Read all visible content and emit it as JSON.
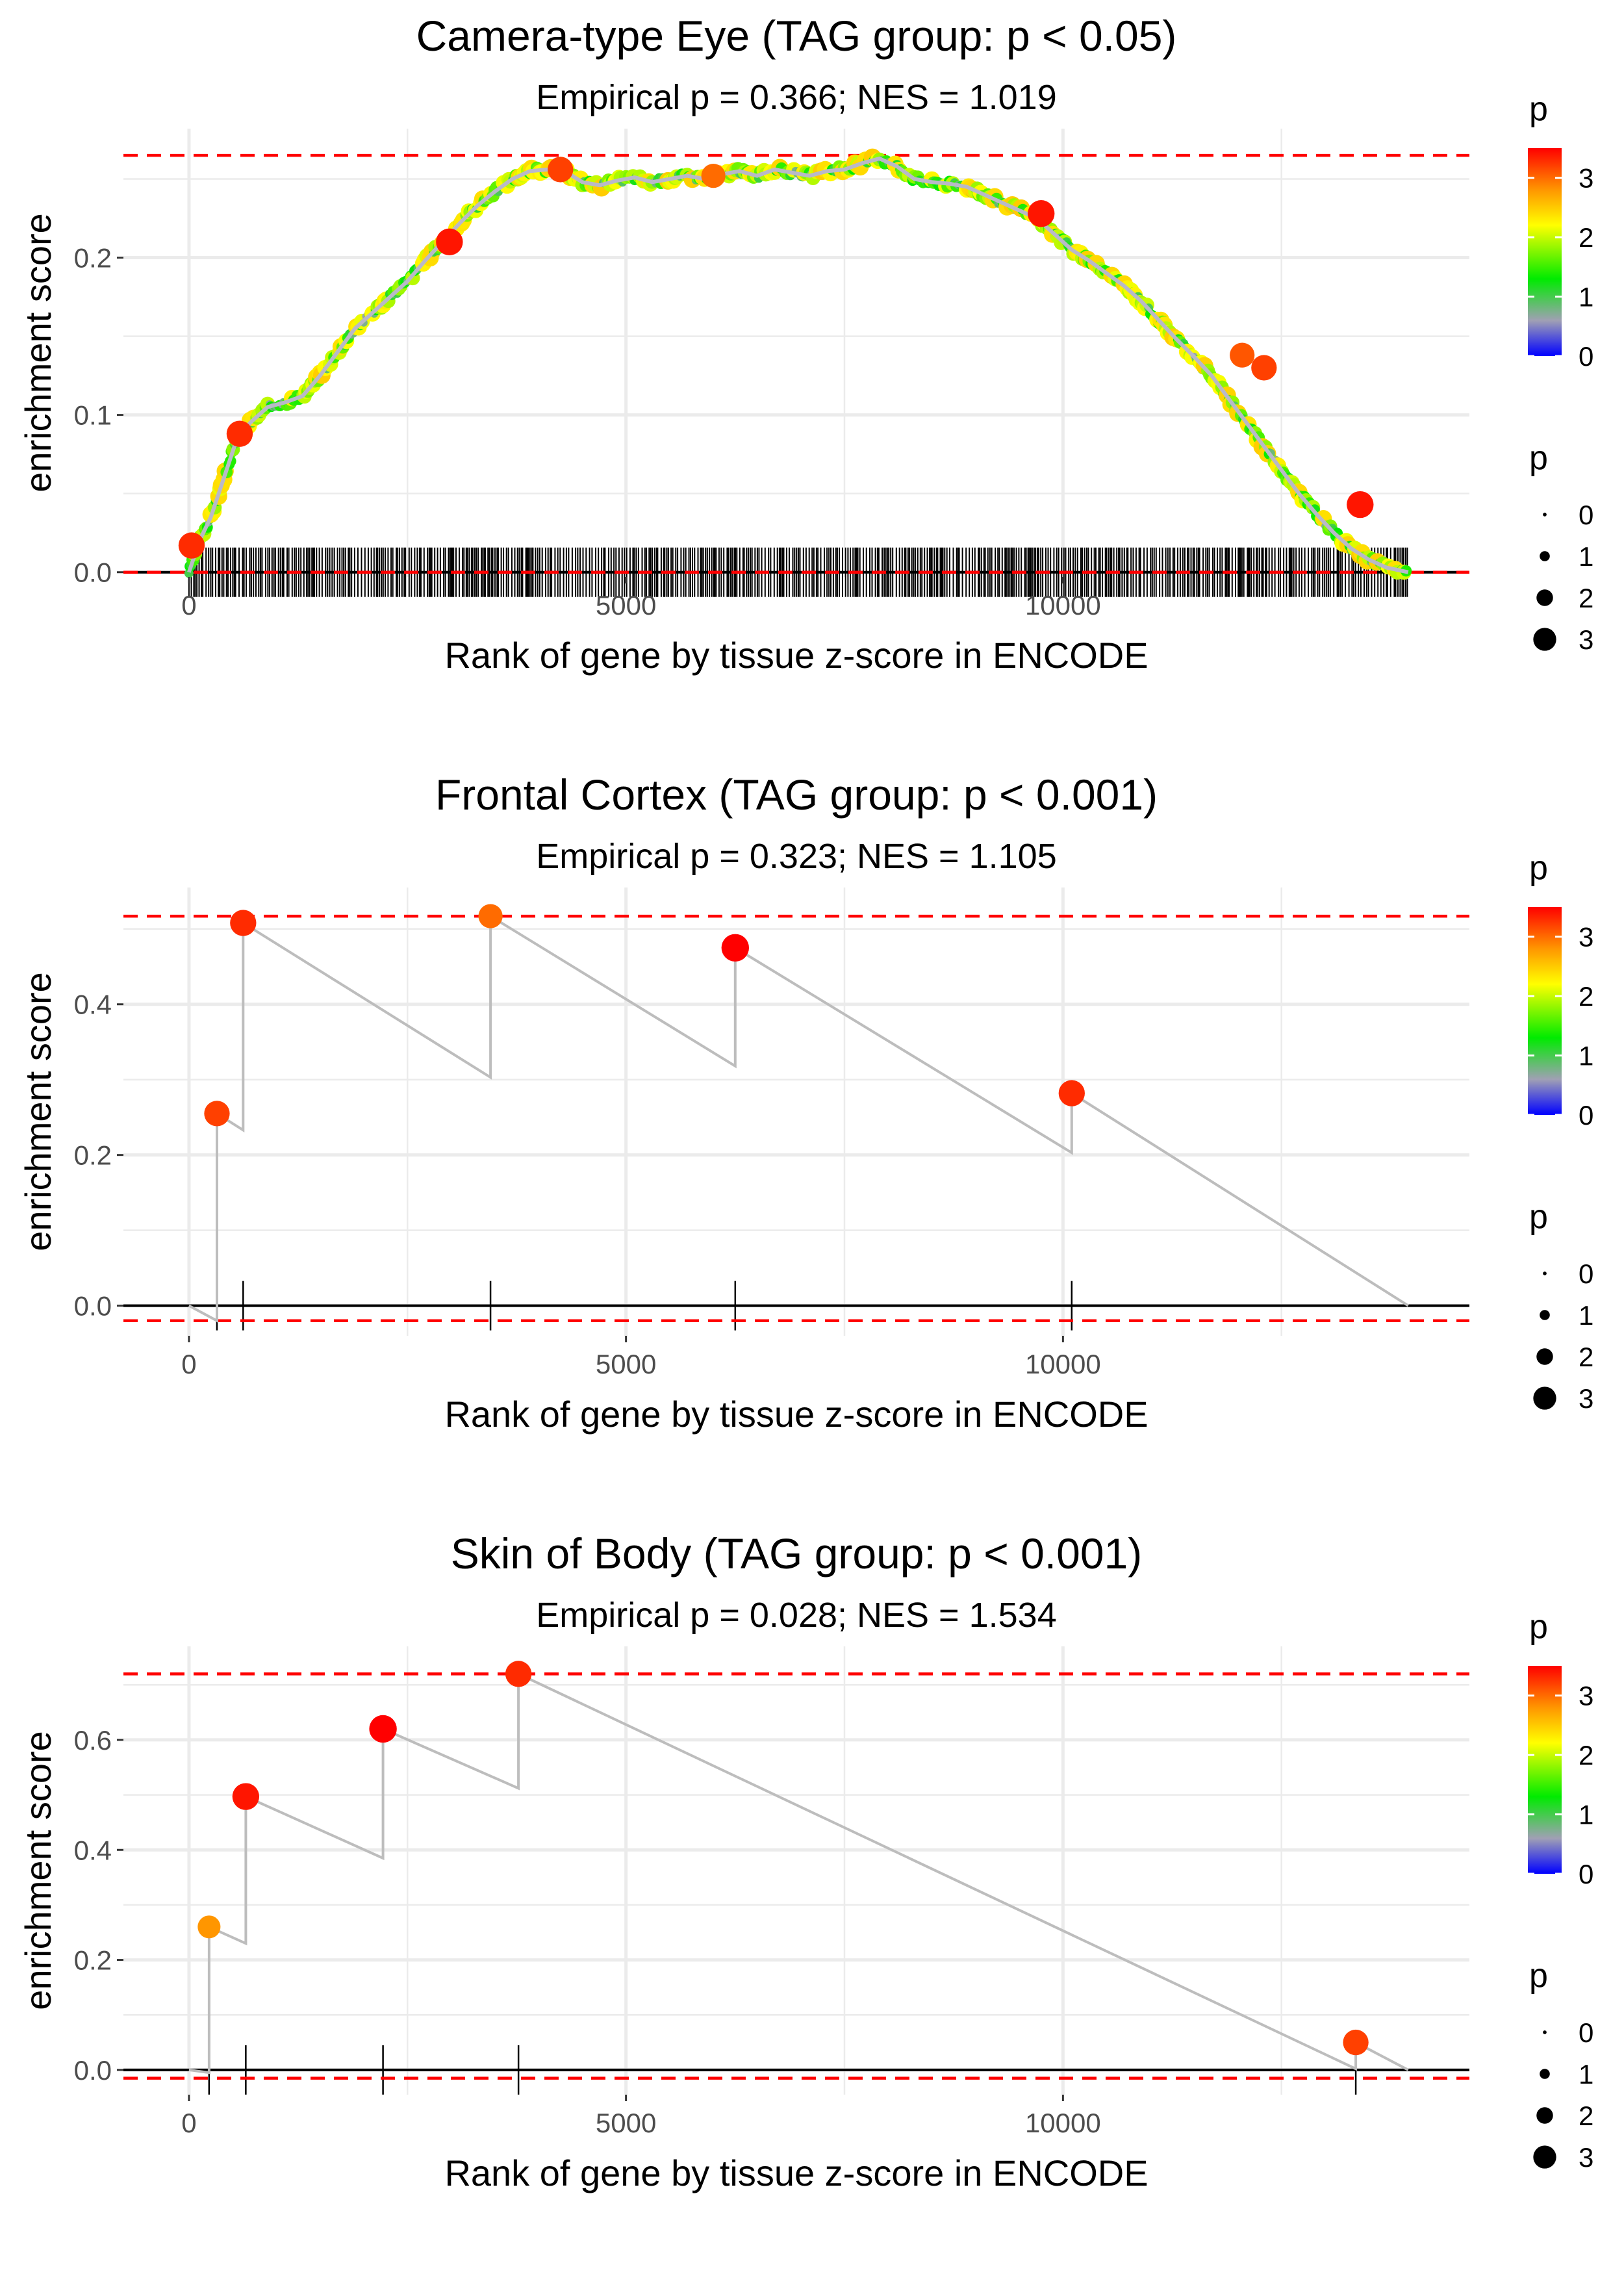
{
  "chart_data": [
    {
      "type": "line",
      "title": "Camera-type Eye (TAG group: p < 0.05)",
      "subtitle": "Empirical p = 0.366; NES = 1.019",
      "xlabel": "Rank of gene by tissue z-score in ENCODE",
      "ylabel": "enrichment score",
      "xlim": [
        -750,
        14650
      ],
      "ylim": [
        -0.003,
        0.282
      ],
      "xticks": [
        0,
        5000,
        10000
      ],
      "xtick_labels": [
        "0",
        "5000",
        "10000"
      ],
      "yticks": [
        0,
        0.1,
        0.2
      ],
      "ytick_labels": [
        "0.0",
        "0.1",
        "0.2"
      ],
      "max_es_line": 0.265,
      "min_es_line": 0.0,
      "n_genes": 14000,
      "dense_hits": true,
      "hit_range": [
        0,
        13950
      ],
      "curve_x": [
        0,
        120,
        250,
        400,
        550,
        700,
        900,
        1100,
        1300,
        1500,
        1700,
        1900,
        2100,
        2300,
        2500,
        2700,
        2900,
        3100,
        3300,
        3500,
        3700,
        3900,
        4100,
        4300,
        4500,
        4700,
        4900,
        5100,
        5300,
        5500,
        5700,
        5900,
        6100,
        6300,
        6500,
        6700,
        6900,
        7100,
        7300,
        7500,
        7700,
        7900,
        8100,
        8300,
        8500,
        8700,
        8900,
        9100,
        9300,
        9500,
        9700,
        9900,
        10100,
        10300,
        10500,
        10700,
        10900,
        11100,
        11300,
        11500,
        11700,
        11900,
        12100,
        12300,
        12500,
        12700,
        12900,
        13100,
        13300,
        13500,
        13700,
        13950
      ],
      "curve_y": [
        0.0,
        0.02,
        0.035,
        0.06,
        0.085,
        0.095,
        0.105,
        0.108,
        0.112,
        0.125,
        0.14,
        0.155,
        0.165,
        0.175,
        0.185,
        0.198,
        0.21,
        0.222,
        0.233,
        0.242,
        0.25,
        0.255,
        0.256,
        0.255,
        0.248,
        0.246,
        0.249,
        0.251,
        0.248,
        0.25,
        0.252,
        0.25,
        0.253,
        0.255,
        0.252,
        0.256,
        0.254,
        0.252,
        0.255,
        0.256,
        0.26,
        0.263,
        0.258,
        0.25,
        0.248,
        0.247,
        0.245,
        0.24,
        0.235,
        0.23,
        0.225,
        0.215,
        0.205,
        0.198,
        0.19,
        0.182,
        0.172,
        0.16,
        0.148,
        0.137,
        0.125,
        0.11,
        0.095,
        0.08,
        0.065,
        0.05,
        0.037,
        0.025,
        0.015,
        0.008,
        0.003,
        0.0
      ],
      "points": [
        {
          "x": 30,
          "y": 0.017,
          "p": 3.3
        },
        {
          "x": 580,
          "y": 0.088,
          "p": 3.3
        },
        {
          "x": 2980,
          "y": 0.21,
          "p": 3.4
        },
        {
          "x": 4250,
          "y": 0.256,
          "p": 3.2
        },
        {
          "x": 6000,
          "y": 0.252,
          "p": 3.0
        },
        {
          "x": 9750,
          "y": 0.228,
          "p": 3.4
        },
        {
          "x": 12050,
          "y": 0.138,
          "p": 3.1
        },
        {
          "x": 12300,
          "y": 0.13,
          "p": 3.2
        },
        {
          "x": 13400,
          "y": 0.043,
          "p": 3.4
        }
      ],
      "legend_color_title": "p",
      "legend_color_labels": [
        "3",
        "2",
        "1",
        "0"
      ],
      "legend_size_title": "p",
      "legend_size_labels": [
        "0",
        "1",
        "2",
        "3"
      ]
    },
    {
      "type": "line",
      "title": "Frontal Cortex (TAG group: p < 0.001)",
      "subtitle": "Empirical p = 0.323; NES = 1.105",
      "xlabel": "Rank of gene by tissue z-score in ENCODE",
      "ylabel": "enrichment score",
      "xlim": [
        -750,
        14650
      ],
      "ylim": [
        -0.04,
        0.555
      ],
      "xticks": [
        0,
        5000,
        10000
      ],
      "xtick_labels": [
        "0",
        "5000",
        "10000"
      ],
      "yticks": [
        0,
        0.2,
        0.4
      ],
      "ytick_labels": [
        "0.0",
        "0.2",
        "0.4"
      ],
      "max_es_line": 0.517,
      "min_es_line": -0.02,
      "n_genes": 14000,
      "dense_hits": false,
      "hits": [
        320,
        620,
        3450,
        6250,
        10100
      ],
      "curve_x": [
        0,
        320,
        320,
        620,
        620,
        3450,
        3450,
        6250,
        6250,
        10100,
        10100,
        13950
      ],
      "curve_y": [
        0,
        -0.02,
        0.255,
        0.233,
        0.508,
        0.303,
        0.517,
        0.318,
        0.475,
        0.203,
        0.282,
        0
      ],
      "points": [
        {
          "x": 320,
          "y": 0.255,
          "p": 3.2
        },
        {
          "x": 620,
          "y": 0.508,
          "p": 3.3
        },
        {
          "x": 3450,
          "y": 0.517,
          "p": 3.0
        },
        {
          "x": 6250,
          "y": 0.475,
          "p": 3.5
        },
        {
          "x": 10100,
          "y": 0.282,
          "p": 3.3
        }
      ],
      "legend_color_title": "p",
      "legend_color_labels": [
        "3",
        "2",
        "1",
        "0"
      ],
      "legend_size_title": "p",
      "legend_size_labels": [
        "0",
        "1",
        "2",
        "3"
      ]
    },
    {
      "type": "line",
      "title": "Skin of Body (TAG group: p < 0.001)",
      "subtitle": "Empirical p = 0.028; NES = 1.534",
      "xlabel": "Rank of gene by tissue z-score in ENCODE",
      "ylabel": "enrichment score",
      "xlim": [
        -750,
        14650
      ],
      "ylim": [
        -0.045,
        0.77
      ],
      "xticks": [
        0,
        5000,
        10000
      ],
      "xtick_labels": [
        "0",
        "5000",
        "10000"
      ],
      "yticks": [
        0,
        0.2,
        0.4,
        0.6
      ],
      "ytick_labels": [
        "0.0",
        "0.2",
        "0.4",
        "0.6"
      ],
      "max_es_line": 0.72,
      "min_es_line": -0.015,
      "n_genes": 14000,
      "dense_hits": false,
      "hits": [
        230,
        650,
        2220,
        3770,
        13350
      ],
      "curve_x": [
        0,
        230,
        230,
        650,
        650,
        2220,
        2220,
        3770,
        3770,
        13350,
        13350,
        13950
      ],
      "curve_y": [
        0,
        -0.005,
        0.26,
        0.23,
        0.497,
        0.385,
        0.62,
        0.512,
        0.72,
        0.002,
        0.05,
        0
      ],
      "points": [
        {
          "x": 230,
          "y": 0.26,
          "p": 2.8
        },
        {
          "x": 650,
          "y": 0.497,
          "p": 3.4
        },
        {
          "x": 2220,
          "y": 0.62,
          "p": 3.5
        },
        {
          "x": 3770,
          "y": 0.72,
          "p": 3.3
        },
        {
          "x": 13350,
          "y": 0.05,
          "p": 3.2
        }
      ],
      "legend_color_title": "p",
      "legend_color_labels": [
        "3",
        "2",
        "1",
        "0"
      ],
      "legend_size_title": "p",
      "legend_size_labels": [
        "0",
        "1",
        "2",
        "3"
      ]
    }
  ]
}
